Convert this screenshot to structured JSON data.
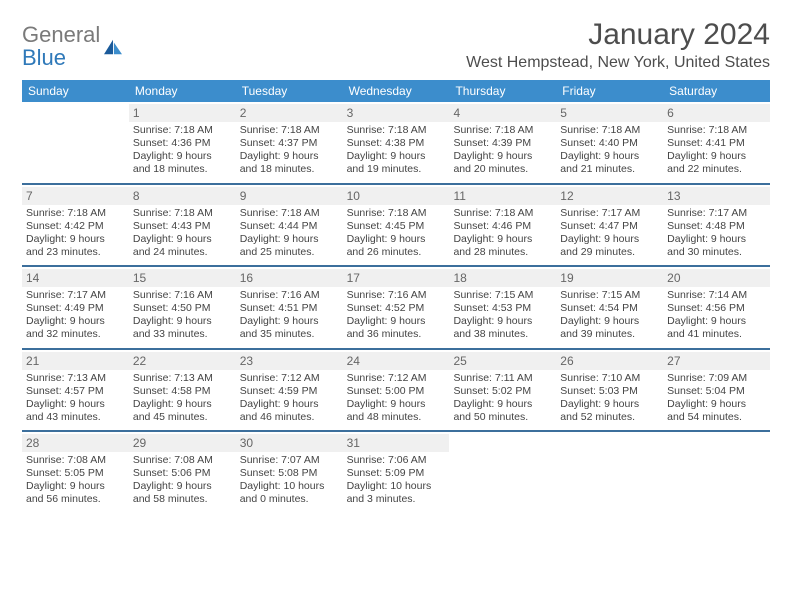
{
  "brand": {
    "line1": "General",
    "line2": "Blue"
  },
  "title": "January 2024",
  "location": "West Hempstead, New York, United States",
  "colors": {
    "header_bg": "#3c8dcc",
    "header_text": "#ffffff",
    "week_divider": "#3c6f9c",
    "daynum_bg": "#f0f0f0",
    "daynum_text": "#666666",
    "body_text": "#444444",
    "title_text": "#4d4d4d",
    "logo_gray": "#7a7a7a",
    "logo_blue": "#2f79b9"
  },
  "weekdays": [
    "Sunday",
    "Monday",
    "Tuesday",
    "Wednesday",
    "Thursday",
    "Friday",
    "Saturday"
  ],
  "weeks": [
    [
      {
        "n": "",
        "sr": "",
        "ss": "",
        "d1": "",
        "d2": ""
      },
      {
        "n": "1",
        "sr": "Sunrise: 7:18 AM",
        "ss": "Sunset: 4:36 PM",
        "d1": "Daylight: 9 hours",
        "d2": "and 18 minutes."
      },
      {
        "n": "2",
        "sr": "Sunrise: 7:18 AM",
        "ss": "Sunset: 4:37 PM",
        "d1": "Daylight: 9 hours",
        "d2": "and 18 minutes."
      },
      {
        "n": "3",
        "sr": "Sunrise: 7:18 AM",
        "ss": "Sunset: 4:38 PM",
        "d1": "Daylight: 9 hours",
        "d2": "and 19 minutes."
      },
      {
        "n": "4",
        "sr": "Sunrise: 7:18 AM",
        "ss": "Sunset: 4:39 PM",
        "d1": "Daylight: 9 hours",
        "d2": "and 20 minutes."
      },
      {
        "n": "5",
        "sr": "Sunrise: 7:18 AM",
        "ss": "Sunset: 4:40 PM",
        "d1": "Daylight: 9 hours",
        "d2": "and 21 minutes."
      },
      {
        "n": "6",
        "sr": "Sunrise: 7:18 AM",
        "ss": "Sunset: 4:41 PM",
        "d1": "Daylight: 9 hours",
        "d2": "and 22 minutes."
      }
    ],
    [
      {
        "n": "7",
        "sr": "Sunrise: 7:18 AM",
        "ss": "Sunset: 4:42 PM",
        "d1": "Daylight: 9 hours",
        "d2": "and 23 minutes."
      },
      {
        "n": "8",
        "sr": "Sunrise: 7:18 AM",
        "ss": "Sunset: 4:43 PM",
        "d1": "Daylight: 9 hours",
        "d2": "and 24 minutes."
      },
      {
        "n": "9",
        "sr": "Sunrise: 7:18 AM",
        "ss": "Sunset: 4:44 PM",
        "d1": "Daylight: 9 hours",
        "d2": "and 25 minutes."
      },
      {
        "n": "10",
        "sr": "Sunrise: 7:18 AM",
        "ss": "Sunset: 4:45 PM",
        "d1": "Daylight: 9 hours",
        "d2": "and 26 minutes."
      },
      {
        "n": "11",
        "sr": "Sunrise: 7:18 AM",
        "ss": "Sunset: 4:46 PM",
        "d1": "Daylight: 9 hours",
        "d2": "and 28 minutes."
      },
      {
        "n": "12",
        "sr": "Sunrise: 7:17 AM",
        "ss": "Sunset: 4:47 PM",
        "d1": "Daylight: 9 hours",
        "d2": "and 29 minutes."
      },
      {
        "n": "13",
        "sr": "Sunrise: 7:17 AM",
        "ss": "Sunset: 4:48 PM",
        "d1": "Daylight: 9 hours",
        "d2": "and 30 minutes."
      }
    ],
    [
      {
        "n": "14",
        "sr": "Sunrise: 7:17 AM",
        "ss": "Sunset: 4:49 PM",
        "d1": "Daylight: 9 hours",
        "d2": "and 32 minutes."
      },
      {
        "n": "15",
        "sr": "Sunrise: 7:16 AM",
        "ss": "Sunset: 4:50 PM",
        "d1": "Daylight: 9 hours",
        "d2": "and 33 minutes."
      },
      {
        "n": "16",
        "sr": "Sunrise: 7:16 AM",
        "ss": "Sunset: 4:51 PM",
        "d1": "Daylight: 9 hours",
        "d2": "and 35 minutes."
      },
      {
        "n": "17",
        "sr": "Sunrise: 7:16 AM",
        "ss": "Sunset: 4:52 PM",
        "d1": "Daylight: 9 hours",
        "d2": "and 36 minutes."
      },
      {
        "n": "18",
        "sr": "Sunrise: 7:15 AM",
        "ss": "Sunset: 4:53 PM",
        "d1": "Daylight: 9 hours",
        "d2": "and 38 minutes."
      },
      {
        "n": "19",
        "sr": "Sunrise: 7:15 AM",
        "ss": "Sunset: 4:54 PM",
        "d1": "Daylight: 9 hours",
        "d2": "and 39 minutes."
      },
      {
        "n": "20",
        "sr": "Sunrise: 7:14 AM",
        "ss": "Sunset: 4:56 PM",
        "d1": "Daylight: 9 hours",
        "d2": "and 41 minutes."
      }
    ],
    [
      {
        "n": "21",
        "sr": "Sunrise: 7:13 AM",
        "ss": "Sunset: 4:57 PM",
        "d1": "Daylight: 9 hours",
        "d2": "and 43 minutes."
      },
      {
        "n": "22",
        "sr": "Sunrise: 7:13 AM",
        "ss": "Sunset: 4:58 PM",
        "d1": "Daylight: 9 hours",
        "d2": "and 45 minutes."
      },
      {
        "n": "23",
        "sr": "Sunrise: 7:12 AM",
        "ss": "Sunset: 4:59 PM",
        "d1": "Daylight: 9 hours",
        "d2": "and 46 minutes."
      },
      {
        "n": "24",
        "sr": "Sunrise: 7:12 AM",
        "ss": "Sunset: 5:00 PM",
        "d1": "Daylight: 9 hours",
        "d2": "and 48 minutes."
      },
      {
        "n": "25",
        "sr": "Sunrise: 7:11 AM",
        "ss": "Sunset: 5:02 PM",
        "d1": "Daylight: 9 hours",
        "d2": "and 50 minutes."
      },
      {
        "n": "26",
        "sr": "Sunrise: 7:10 AM",
        "ss": "Sunset: 5:03 PM",
        "d1": "Daylight: 9 hours",
        "d2": "and 52 minutes."
      },
      {
        "n": "27",
        "sr": "Sunrise: 7:09 AM",
        "ss": "Sunset: 5:04 PM",
        "d1": "Daylight: 9 hours",
        "d2": "and 54 minutes."
      }
    ],
    [
      {
        "n": "28",
        "sr": "Sunrise: 7:08 AM",
        "ss": "Sunset: 5:05 PM",
        "d1": "Daylight: 9 hours",
        "d2": "and 56 minutes."
      },
      {
        "n": "29",
        "sr": "Sunrise: 7:08 AM",
        "ss": "Sunset: 5:06 PM",
        "d1": "Daylight: 9 hours",
        "d2": "and 58 minutes."
      },
      {
        "n": "30",
        "sr": "Sunrise: 7:07 AM",
        "ss": "Sunset: 5:08 PM",
        "d1": "Daylight: 10 hours",
        "d2": "and 0 minutes."
      },
      {
        "n": "31",
        "sr": "Sunrise: 7:06 AM",
        "ss": "Sunset: 5:09 PM",
        "d1": "Daylight: 10 hours",
        "d2": "and 3 minutes."
      },
      {
        "n": "",
        "sr": "",
        "ss": "",
        "d1": "",
        "d2": ""
      },
      {
        "n": "",
        "sr": "",
        "ss": "",
        "d1": "",
        "d2": ""
      },
      {
        "n": "",
        "sr": "",
        "ss": "",
        "d1": "",
        "d2": ""
      }
    ]
  ]
}
